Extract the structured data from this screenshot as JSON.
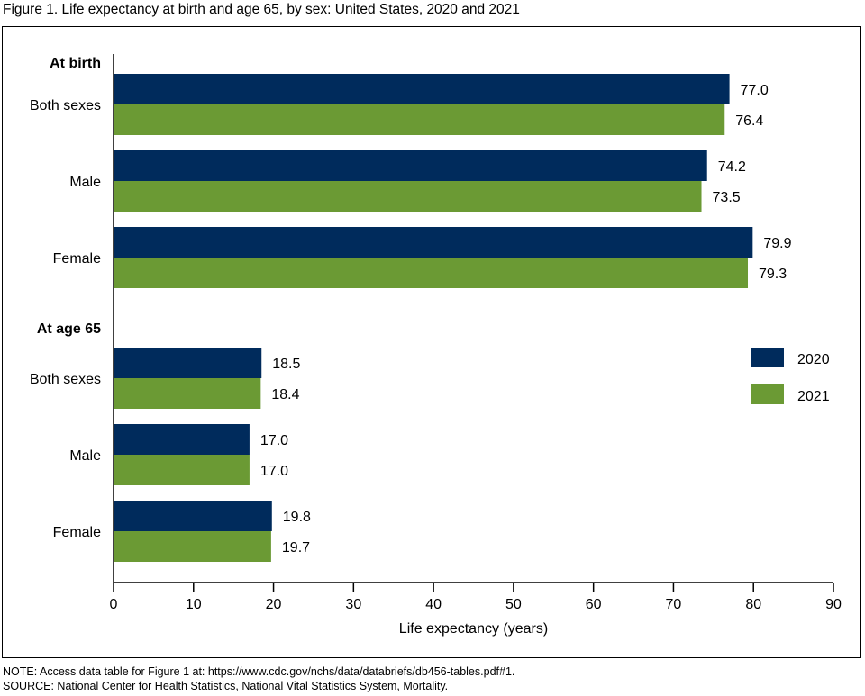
{
  "figure": {
    "title": "Figure 1. Life expectancy at birth and age 65, by sex: United States, 2020 and 2021",
    "note": "NOTE: Access data table for Figure 1 at: https://www.cdc.gov/nchs/data/databriefs/db456-tables.pdf#1.",
    "source": "SOURCE: National Center for Health Statistics, National Vital Statistics System, Mortality."
  },
  "chart_data": {
    "type": "bar",
    "orientation": "horizontal",
    "xlabel": "Life expectancy (years)",
    "xlim": [
      0,
      90
    ],
    "xticks": [
      0,
      10,
      20,
      30,
      40,
      50,
      60,
      70,
      80,
      90
    ],
    "grid": false,
    "legend_position": "right",
    "groups": [
      {
        "label": "At birth",
        "categories": [
          "Both sexes",
          "Male",
          "Female"
        ]
      },
      {
        "label": "At age 65",
        "categories": [
          "Both sexes",
          "Male",
          "Female"
        ]
      }
    ],
    "series": [
      {
        "name": "2020",
        "color": "#002b5c",
        "values": [
          [
            77.0,
            74.2,
            79.9
          ],
          [
            18.5,
            17.0,
            19.8
          ]
        ],
        "value_labels": [
          [
            "77.0",
            "74.2",
            "79.9"
          ],
          [
            "18.5",
            "17.0",
            "19.8"
          ]
        ]
      },
      {
        "name": "2021",
        "color": "#6b9a34",
        "values": [
          [
            76.4,
            73.5,
            79.3
          ],
          [
            18.4,
            17.0,
            19.7
          ]
        ],
        "value_labels": [
          [
            "76.4",
            "73.5",
            "79.3"
          ],
          [
            "18.4",
            "17.0",
            "19.7"
          ]
        ]
      }
    ]
  }
}
